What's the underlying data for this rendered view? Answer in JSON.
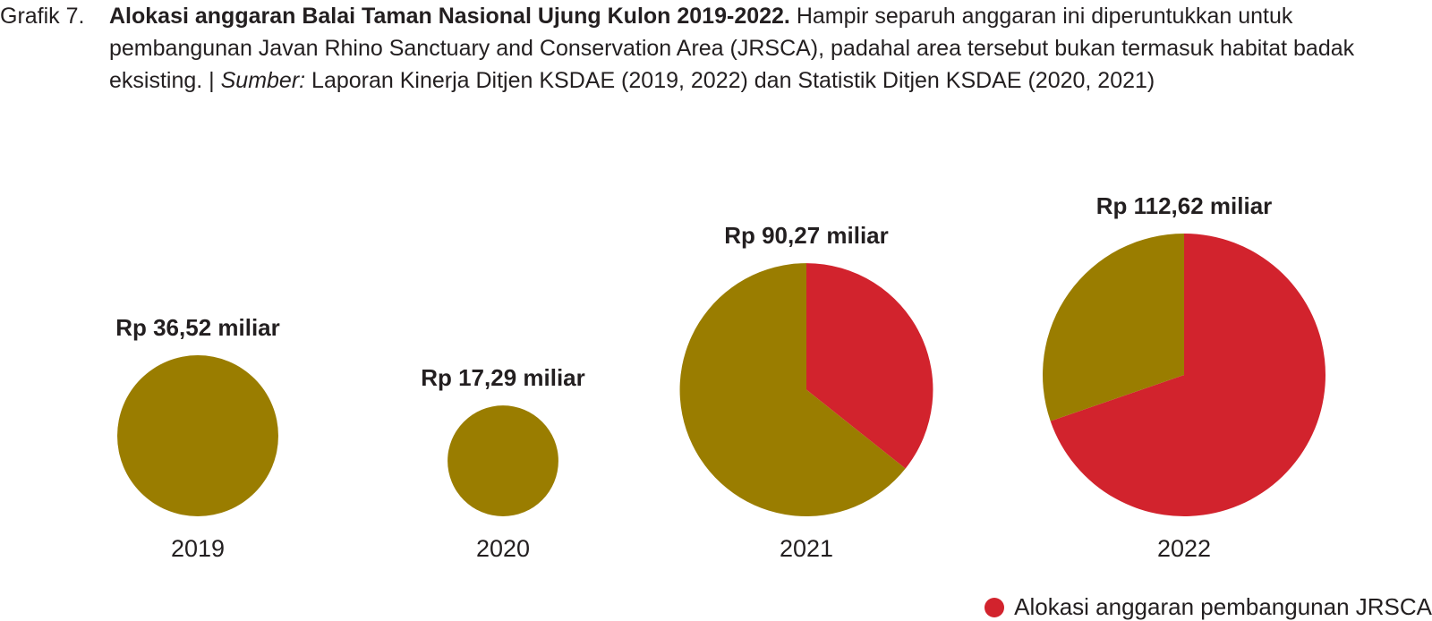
{
  "caption": {
    "label": "Grafik 7.",
    "title": "Alokasi anggaran Balai Taman Nasional Ujung Kulon 2019-2022.",
    "text": " Hampir separuh anggaran ini diperuntukkan untuk pembangunan Javan Rhino Sanctuary and Conservation Area (JRSCA), padahal area tersebut bukan termasuk habitat badak eksisting. | ",
    "source_label": "Sumber:",
    "source_text": " Laporan Kinerja Ditjen KSDAE (2019, 2022) dan Statistik Ditjen KSDAE (2020, 2021)"
  },
  "colors": {
    "jrsca": "#d2232d",
    "other": "#9a7d00",
    "text": "#231f20"
  },
  "legend": {
    "label": "Alokasi anggaran pembangunan JRSCA"
  },
  "chart_data": {
    "type": "pie",
    "title": "Alokasi anggaran Balai Taman Nasional Ujung Kulon 2019-2022.",
    "unit": "Rp miliar",
    "series": [
      {
        "name": "Alokasi anggaran pembangunan JRSCA",
        "color": "#d2232d"
      },
      {
        "color": "#9a7d00"
      }
    ],
    "pies": [
      {
        "year": "2019",
        "total": 36.52,
        "total_label": "Rp 36,52 miliar",
        "jrsca_share": 0
      },
      {
        "year": "2020",
        "total": 17.29,
        "total_label": "Rp 17,29 miliar",
        "jrsca_share": 0
      },
      {
        "year": "2021",
        "total": 90.27,
        "total_label": "Rp 90,27 miliar",
        "jrsca_share": 0.357
      },
      {
        "year": "2022",
        "total": 112.62,
        "total_label": "Rp 112,62 miliar",
        "jrsca_share": 0.697
      }
    ],
    "legend_position": "bottom-right"
  }
}
